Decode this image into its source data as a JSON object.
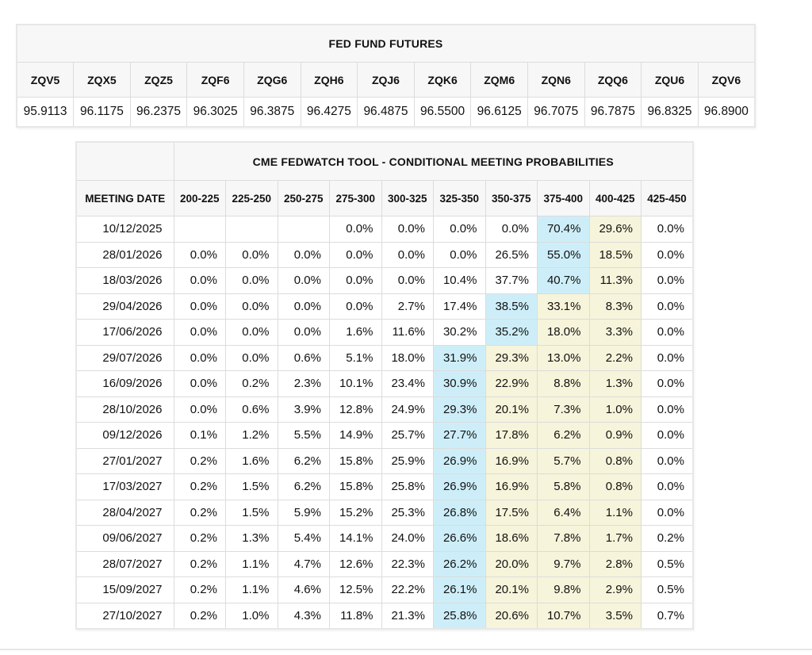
{
  "colors": {
    "highlight_blue": "#cdeef8",
    "highlight_yellow": "#f6f4da",
    "header_bg": "#f7f7f7",
    "grid_border": "#dcdcdc"
  },
  "futures_table": {
    "title": "FED FUND FUTURES",
    "contracts": [
      "ZQV5",
      "ZQX5",
      "ZQZ5",
      "ZQF6",
      "ZQG6",
      "ZQH6",
      "ZQJ6",
      "ZQK6",
      "ZQM6",
      "ZQN6",
      "ZQQ6",
      "ZQU6",
      "ZQV6"
    ],
    "prices": [
      "95.9113",
      "96.1175",
      "96.2375",
      "96.3025",
      "96.3875",
      "96.4275",
      "96.4875",
      "96.5500",
      "96.6125",
      "96.7075",
      "96.7875",
      "96.8325",
      "96.8900"
    ]
  },
  "fedwatch_table": {
    "title": "CME FEDWATCH TOOL - CONDITIONAL MEETING PROBABILITIES",
    "date_header": "MEETING DATE",
    "rate_headers": [
      "200-225",
      "225-250",
      "250-275",
      "275-300",
      "300-325",
      "325-350",
      "350-375",
      "375-400",
      "400-425",
      "425-450"
    ],
    "rows": [
      {
        "date": "10/12/2025",
        "values": [
          "",
          "",
          "",
          "0.0%",
          "0.0%",
          "0.0%",
          "0.0%",
          "70.4%",
          "29.6%",
          "0.0%"
        ],
        "styles": [
          "",
          "",
          "",
          "",
          "",
          "",
          "",
          "blue",
          "yellow",
          ""
        ]
      },
      {
        "date": "28/01/2026",
        "values": [
          "0.0%",
          "0.0%",
          "0.0%",
          "0.0%",
          "0.0%",
          "0.0%",
          "26.5%",
          "55.0%",
          "18.5%",
          "0.0%"
        ],
        "styles": [
          "",
          "",
          "",
          "",
          "",
          "",
          "",
          "blue",
          "yellow",
          ""
        ]
      },
      {
        "date": "18/03/2026",
        "values": [
          "0.0%",
          "0.0%",
          "0.0%",
          "0.0%",
          "0.0%",
          "10.4%",
          "37.7%",
          "40.7%",
          "11.3%",
          "0.0%"
        ],
        "styles": [
          "",
          "",
          "",
          "",
          "",
          "",
          "",
          "blue",
          "yellow",
          ""
        ]
      },
      {
        "date": "29/04/2026",
        "values": [
          "0.0%",
          "0.0%",
          "0.0%",
          "0.0%",
          "2.7%",
          "17.4%",
          "38.5%",
          "33.1%",
          "8.3%",
          "0.0%"
        ],
        "styles": [
          "",
          "",
          "",
          "",
          "",
          "",
          "blue",
          "yellow",
          "yellow",
          ""
        ]
      },
      {
        "date": "17/06/2026",
        "values": [
          "0.0%",
          "0.0%",
          "0.0%",
          "1.6%",
          "11.6%",
          "30.2%",
          "35.2%",
          "18.0%",
          "3.3%",
          "0.0%"
        ],
        "styles": [
          "",
          "",
          "",
          "",
          "",
          "",
          "blue",
          "yellow",
          "yellow",
          ""
        ]
      },
      {
        "date": "29/07/2026",
        "values": [
          "0.0%",
          "0.0%",
          "0.6%",
          "5.1%",
          "18.0%",
          "31.9%",
          "29.3%",
          "13.0%",
          "2.2%",
          "0.0%"
        ],
        "styles": [
          "",
          "",
          "",
          "",
          "",
          "blue",
          "yellow",
          "yellow",
          "yellow",
          ""
        ]
      },
      {
        "date": "16/09/2026",
        "values": [
          "0.0%",
          "0.2%",
          "2.3%",
          "10.1%",
          "23.4%",
          "30.9%",
          "22.9%",
          "8.8%",
          "1.3%",
          "0.0%"
        ],
        "styles": [
          "",
          "",
          "",
          "",
          "",
          "blue",
          "yellow",
          "yellow",
          "yellow",
          ""
        ]
      },
      {
        "date": "28/10/2026",
        "values": [
          "0.0%",
          "0.6%",
          "3.9%",
          "12.8%",
          "24.9%",
          "29.3%",
          "20.1%",
          "7.3%",
          "1.0%",
          "0.0%"
        ],
        "styles": [
          "",
          "",
          "",
          "",
          "",
          "blue",
          "yellow",
          "yellow",
          "yellow",
          ""
        ]
      },
      {
        "date": "09/12/2026",
        "values": [
          "0.1%",
          "1.2%",
          "5.5%",
          "14.9%",
          "25.7%",
          "27.7%",
          "17.8%",
          "6.2%",
          "0.9%",
          "0.0%"
        ],
        "styles": [
          "",
          "",
          "",
          "",
          "",
          "blue",
          "yellow",
          "yellow",
          "yellow",
          ""
        ]
      },
      {
        "date": "27/01/2027",
        "values": [
          "0.2%",
          "1.6%",
          "6.2%",
          "15.8%",
          "25.9%",
          "26.9%",
          "16.9%",
          "5.7%",
          "0.8%",
          "0.0%"
        ],
        "styles": [
          "",
          "",
          "",
          "",
          "",
          "blue",
          "yellow",
          "yellow",
          "yellow",
          ""
        ]
      },
      {
        "date": "17/03/2027",
        "values": [
          "0.2%",
          "1.5%",
          "6.2%",
          "15.8%",
          "25.8%",
          "26.9%",
          "16.9%",
          "5.8%",
          "0.8%",
          "0.0%"
        ],
        "styles": [
          "",
          "",
          "",
          "",
          "",
          "blue",
          "yellow",
          "yellow",
          "yellow",
          ""
        ]
      },
      {
        "date": "28/04/2027",
        "values": [
          "0.2%",
          "1.5%",
          "5.9%",
          "15.2%",
          "25.3%",
          "26.8%",
          "17.5%",
          "6.4%",
          "1.1%",
          "0.0%"
        ],
        "styles": [
          "",
          "",
          "",
          "",
          "",
          "blue",
          "yellow",
          "yellow",
          "yellow",
          ""
        ]
      },
      {
        "date": "09/06/2027",
        "values": [
          "0.2%",
          "1.3%",
          "5.4%",
          "14.1%",
          "24.0%",
          "26.6%",
          "18.6%",
          "7.8%",
          "1.7%",
          "0.2%"
        ],
        "styles": [
          "",
          "",
          "",
          "",
          "",
          "blue",
          "yellow",
          "yellow",
          "yellow",
          ""
        ]
      },
      {
        "date": "28/07/2027",
        "values": [
          "0.2%",
          "1.1%",
          "4.7%",
          "12.6%",
          "22.3%",
          "26.2%",
          "20.0%",
          "9.7%",
          "2.8%",
          "0.5%"
        ],
        "styles": [
          "",
          "",
          "",
          "",
          "",
          "blue",
          "yellow",
          "yellow",
          "yellow",
          ""
        ]
      },
      {
        "date": "15/09/2027",
        "values": [
          "0.2%",
          "1.1%",
          "4.6%",
          "12.5%",
          "22.2%",
          "26.1%",
          "20.1%",
          "9.8%",
          "2.9%",
          "0.5%"
        ],
        "styles": [
          "",
          "",
          "",
          "",
          "",
          "blue",
          "yellow",
          "yellow",
          "yellow",
          ""
        ]
      },
      {
        "date": "27/10/2027",
        "values": [
          "0.2%",
          "1.0%",
          "4.3%",
          "11.8%",
          "21.3%",
          "25.8%",
          "20.6%",
          "10.7%",
          "3.5%",
          "0.7%"
        ],
        "styles": [
          "",
          "",
          "",
          "",
          "",
          "blue",
          "yellow",
          "yellow",
          "yellow",
          ""
        ]
      }
    ]
  }
}
